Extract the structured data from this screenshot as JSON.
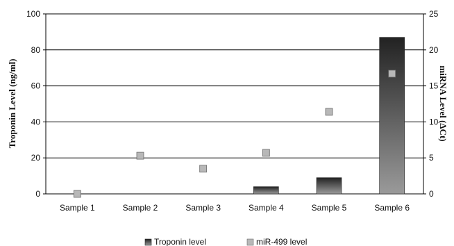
{
  "chart_data": {
    "type": "bar",
    "categories": [
      "Sample 1",
      "Sample 2",
      "Sample 3",
      "Sample 4",
      "Sample 5",
      "Sample 6"
    ],
    "series": [
      {
        "name": "Troponin level",
        "kind": "bar",
        "axis": "left",
        "values": [
          0,
          0,
          0,
          4,
          9,
          87
        ]
      },
      {
        "name": "miR-499 level",
        "kind": "marker",
        "axis": "right",
        "values": [
          0,
          5.3,
          3.5,
          5.7,
          11.4,
          16.7
        ]
      }
    ],
    "ylabel_left": "Troponin Level (ng/ml)",
    "ylabel_right": "miRNA Level (ΔCt)",
    "ylim_left": [
      0,
      100
    ],
    "ylim_right": [
      0,
      25
    ],
    "yticks_left": [
      "0",
      "20",
      "40",
      "60",
      "80",
      "100"
    ],
    "yticks_right": [
      "0",
      "5",
      "10",
      "15",
      "20",
      "25"
    ],
    "grid": true,
    "legend_position": "bottom",
    "colors": {
      "bar": "#3a3a3a",
      "marker": "#b8b8b8",
      "grid": "#000000"
    }
  }
}
